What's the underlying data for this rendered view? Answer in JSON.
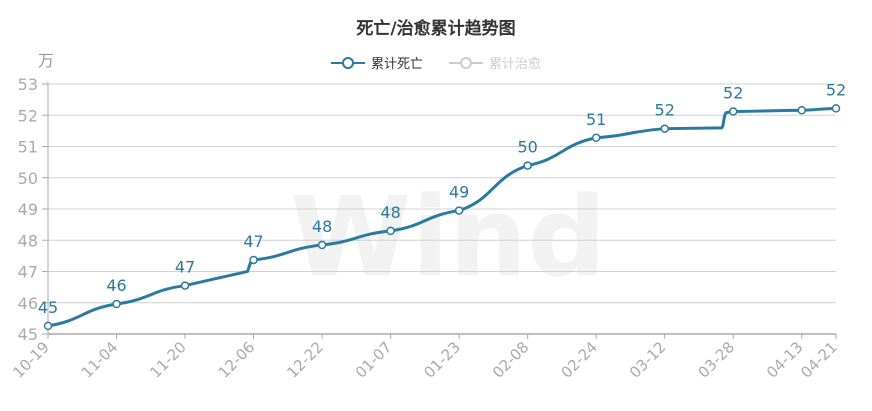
{
  "header": {
    "title": "死亡/治愈累计趋势图"
  },
  "legend": [
    {
      "label": "累计死亡",
      "color": "#2a7aa0",
      "active": true
    },
    {
      "label": "累计治愈",
      "color": "#cccccc",
      "active": false
    }
  ],
  "axis": {
    "unit": "万"
  },
  "watermark": "Wind",
  "colors": {
    "series": "#2a7aa0",
    "grid": "#d0d0d0",
    "axis": "#aaaaaa",
    "inactive": "#cccccc"
  },
  "chart_data": {
    "type": "line",
    "title": "死亡/治愈累计趋势图",
    "xlabel": "",
    "ylabel": "万",
    "ylim": [
      45,
      53
    ],
    "yticks": [
      45,
      46,
      47,
      48,
      49,
      50,
      51,
      52,
      53
    ],
    "grid": true,
    "legend_position": "top",
    "x": [
      "10-19",
      "11-04",
      "11-20",
      "12-06",
      "12-22",
      "01-07",
      "01-23",
      "02-08",
      "02-24",
      "03-12",
      "03-28",
      "04-13",
      "04-21"
    ],
    "series": [
      {
        "name": "累计死亡",
        "values": [
          45.26,
          45.96,
          46.55,
          47.37,
          47.85,
          48.3,
          48.95,
          50.39,
          51.28,
          51.57,
          52.12,
          52.16,
          52.22
        ],
        "labels": [
          "45",
          "46",
          "47",
          "47",
          "48",
          "48",
          "49",
          "50",
          "51",
          "52",
          "52",
          "",
          "52"
        ]
      },
      {
        "name": "累计治愈",
        "values": [],
        "hidden": true
      }
    ]
  }
}
